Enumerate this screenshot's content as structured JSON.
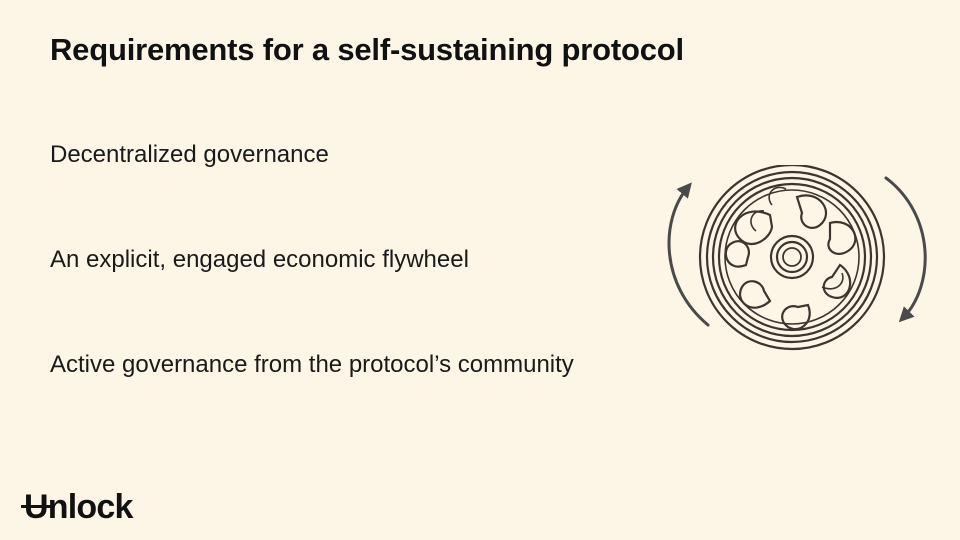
{
  "slide": {
    "title": "Requirements for a self-sustaining protocol",
    "bullets": [
      "Decentralized governance",
      "An explicit, engaged economic flywheel",
      "Active governance from the protocol’s community"
    ]
  },
  "illustration": {
    "icon": "flywheel-icon",
    "line_color": "#3c3530",
    "arrow_color": "#4a4a4a"
  },
  "brand": {
    "logo_first_letter": "U",
    "logo_rest": "nlock"
  },
  "colors": {
    "background": "#fdf5e6",
    "text": "#111111"
  }
}
